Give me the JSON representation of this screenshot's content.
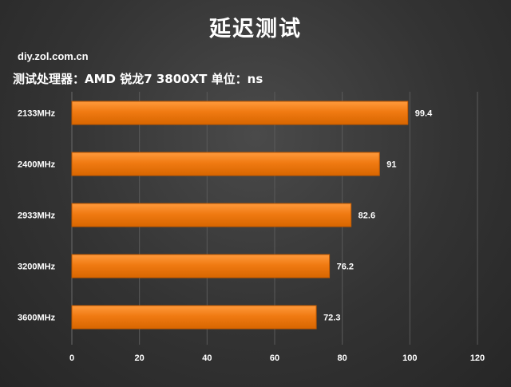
{
  "header": {
    "title": "延迟测试",
    "watermark": "diy.zol.com.cn",
    "subtitle": "测试处理器：AMD 锐龙7 3800XT  单位：ns"
  },
  "colors": {
    "bar": "#f07a12",
    "bar_edge": "#c35a00",
    "grid": "#5a5a5a"
  },
  "chart_data": {
    "type": "bar",
    "orientation": "horizontal",
    "title": "延迟测试",
    "xlabel": "",
    "ylabel": "",
    "categories": [
      "2133MHz",
      "2400MHz",
      "2933MHz",
      "3200MHz",
      "3600MHz"
    ],
    "values": [
      99.4,
      91,
      82.6,
      76.2,
      72.3
    ],
    "value_labels": [
      "99.4",
      "91",
      "82.6",
      "76.2",
      "72.3"
    ],
    "xlim": [
      0,
      120
    ],
    "xticks": [
      "0",
      "20",
      "40",
      "60",
      "80",
      "100",
      "120"
    ],
    "grid": true
  }
}
